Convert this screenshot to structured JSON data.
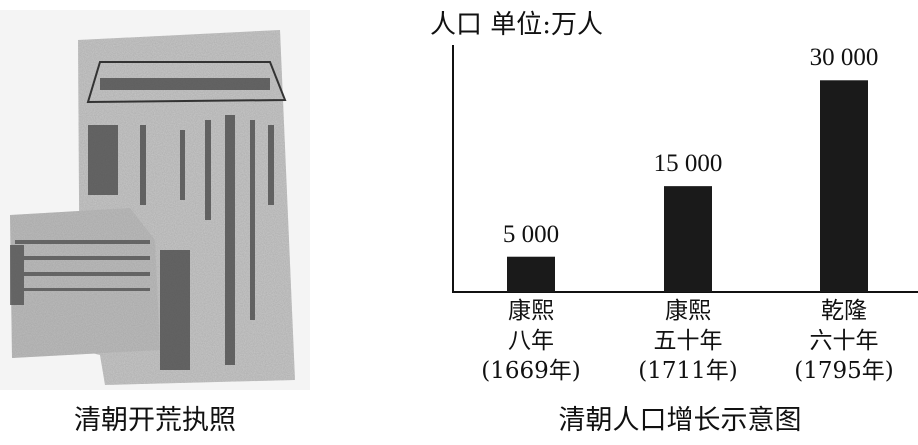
{
  "left_figure": {
    "caption": "清朝开荒执照",
    "image": "photo of an old Qing dynasty land reclamation license document"
  },
  "right_figure": {
    "caption": "清朝人口增长示意图"
  },
  "chart_data": {
    "type": "bar",
    "title": "清朝人口增长示意图",
    "ylabel": "人口 单位:万人",
    "xlabel": "",
    "categories": [
      [
        "康熙",
        "八年",
        "(1669年)"
      ],
      [
        "康熙",
        "五十年",
        "(1711年)"
      ],
      [
        "乾隆",
        "六十年",
        "(1795年)"
      ]
    ],
    "values": [
      5000,
      15000,
      30000
    ],
    "value_labels": [
      "5 000",
      "15 000",
      "30 000"
    ],
    "ylim": [
      0,
      35000
    ],
    "grid": false,
    "y_ticks_shown": false,
    "bar_color": "#1a1a1a"
  }
}
